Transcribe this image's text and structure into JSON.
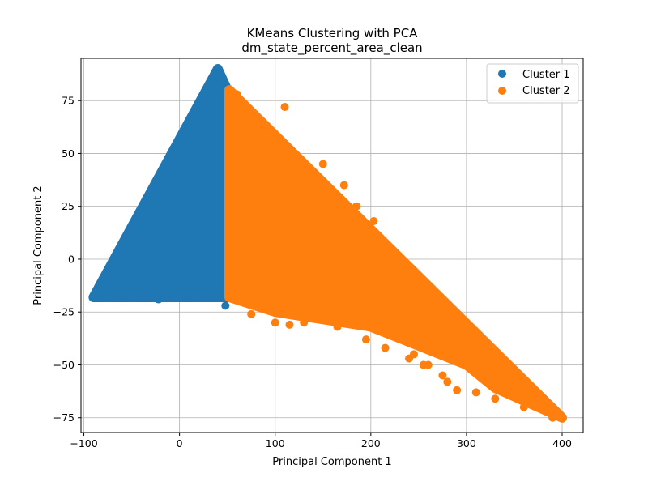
{
  "chart_data": {
    "type": "scatter",
    "title": "KMeans Clustering with PCA",
    "subtitle": "dm_state_percent_area_clean",
    "xlabel": "Principal Component 1",
    "ylabel": "Principal Component 2",
    "xlim": [
      -103,
      422
    ],
    "ylim": [
      -82,
      95
    ],
    "xticks": [
      -100,
      0,
      100,
      200,
      300,
      400
    ],
    "xtick_labels": [
      "−100",
      "0",
      "100",
      "200",
      "300",
      "400"
    ],
    "yticks": [
      -75,
      -50,
      -25,
      0,
      25,
      50,
      75
    ],
    "ytick_labels": [
      "−75",
      "−50",
      "−25",
      "0",
      "25",
      "50",
      "75"
    ],
    "grid": true,
    "legend_position": "top-right",
    "series": [
      {
        "name": "Cluster 1",
        "color": "#1f77b4",
        "region": [
          [
            -90,
            -18
          ],
          [
            40,
            90
          ],
          [
            52,
            78
          ],
          [
            52,
            -18
          ]
        ],
        "outliers": [
          [
            -22,
            -19
          ],
          [
            -15,
            -18
          ],
          [
            5,
            -17
          ],
          [
            30,
            -17
          ],
          [
            48,
            -22
          ],
          [
            44,
            -16
          ],
          [
            20,
            -14
          ],
          [
            -60,
            -17
          ],
          [
            -40,
            -18
          ]
        ]
      },
      {
        "name": "Cluster 2",
        "color": "#ff7f0e",
        "region": [
          [
            52,
            80
          ],
          [
            400,
            -75
          ],
          [
            330,
            -61
          ],
          [
            300,
            -50
          ],
          [
            200,
            -32
          ],
          [
            100,
            -25
          ],
          [
            52,
            -18
          ]
        ],
        "outliers": [
          [
            75,
            -26
          ],
          [
            100,
            -30
          ],
          [
            115,
            -31
          ],
          [
            130,
            -30
          ],
          [
            165,
            -32
          ],
          [
            195,
            -38
          ],
          [
            215,
            -42
          ],
          [
            240,
            -47
          ],
          [
            255,
            -50
          ],
          [
            275,
            -55
          ],
          [
            290,
            -62
          ],
          [
            330,
            -66
          ],
          [
            360,
            -70
          ],
          [
            390,
            -75
          ],
          [
            248,
            -34
          ],
          [
            235,
            -28
          ],
          [
            245,
            -45
          ],
          [
            260,
            -50
          ],
          [
            280,
            -58
          ],
          [
            310,
            -63
          ],
          [
            210,
            -15
          ],
          [
            220,
            -10
          ],
          [
            236,
            -15
          ],
          [
            245,
            -22
          ],
          [
            225,
            0
          ],
          [
            203,
            18
          ],
          [
            185,
            25
          ],
          [
            172,
            35
          ],
          [
            110,
            72
          ],
          [
            60,
            78
          ],
          [
            150,
            45
          ],
          [
            200,
            5
          ]
        ]
      }
    ]
  }
}
